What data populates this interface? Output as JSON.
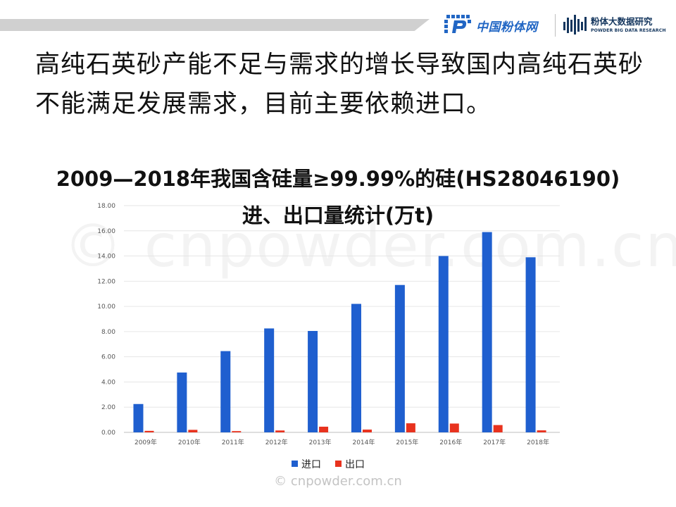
{
  "header": {
    "logo1_text": "中国粉体网",
    "logo2_cn": "粉体大数据研究",
    "logo2_en": "POWDER BIG DATA RESEARCH",
    "brand_blue": "#2166c4",
    "brand_dark": "#14365e"
  },
  "body": {
    "text": "高纯石英砂产能不足与需求的增长导致国内高纯石英砂不能满足发展需求，目前主要依赖进口。"
  },
  "watermark": {
    "big": "© cnpowder.com.cn",
    "small": "© cnpowder.com.cn"
  },
  "chart_data": {
    "type": "bar",
    "title": "2009—2018年我国含硅量≥99.99%的硅(HS28046190)进、出口量统计(万t)",
    "title_lines": [
      "2009—2018年我国含硅量≥99.99%的硅(HS28046190)",
      "进、出口量统计(万t)"
    ],
    "categories": [
      "2009年",
      "2010年",
      "2011年",
      "2012年",
      "2013年",
      "2014年",
      "2015年",
      "2016年",
      "2017年",
      "2018年"
    ],
    "series": [
      {
        "name": "进口",
        "color": "#1f5fcf",
        "values": [
          2.25,
          4.75,
          6.45,
          8.25,
          8.05,
          10.2,
          11.7,
          14.0,
          15.9,
          13.9
        ]
      },
      {
        "name": "出口",
        "color": "#e8321e",
        "values": [
          0.12,
          0.2,
          0.1,
          0.15,
          0.45,
          0.22,
          0.72,
          0.7,
          0.58,
          0.16
        ]
      }
    ],
    "yticks": [
      "0.00",
      "2.00",
      "4.00",
      "6.00",
      "8.00",
      "10.00",
      "12.00",
      "14.00",
      "16.00",
      "18.00"
    ],
    "ylim": [
      0,
      18
    ],
    "grid": true,
    "legend": "bottom-center"
  }
}
